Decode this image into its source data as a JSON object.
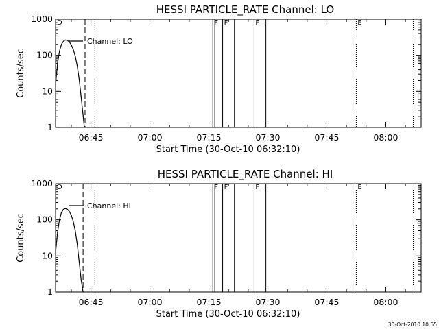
{
  "figure": {
    "timestamp": "30-Oct-2010 10:55",
    "colors": {
      "background": "#ffffff",
      "ink": "#000000"
    }
  },
  "chart_data": [
    {
      "type": "line",
      "title": "HESSI PARTICLE_RATE Channel: LO",
      "xlabel": "Start Time (30-Oct-10 06:32:10)",
      "ylabel": "Counts/sec",
      "yscale": "log",
      "ylim": [
        1,
        1000
      ],
      "xlim": [
        "06:36:00",
        "08:09:00"
      ],
      "xticks": [
        "06:45",
        "07:00",
        "07:15",
        "07:30",
        "07:45",
        "08:00"
      ],
      "yticks": [
        "1",
        "10",
        "100",
        "1000"
      ],
      "legend": {
        "label": "Channel: LO",
        "placement": "top-left"
      },
      "grid": false,
      "series": [
        {
          "name": "Channel: LO",
          "x": [
            "06:36:00",
            "06:36:30",
            "06:37:00",
            "06:37:30",
            "06:38:00",
            "06:38:30",
            "06:39:00",
            "06:39:30",
            "06:40:00",
            "06:40:30",
            "06:41:00",
            "06:41:30",
            "06:42:00",
            "06:42:30",
            "06:43:00",
            "06:43:20"
          ],
          "y": [
            15,
            60,
            130,
            200,
            245,
            265,
            258,
            235,
            195,
            145,
            95,
            52,
            22,
            7,
            2.2,
            1
          ]
        }
      ],
      "markers": [
        {
          "type": "dashed",
          "time": "06:43:30",
          "label": "D"
        },
        {
          "type": "dotted",
          "time": "06:46:00",
          "label": ""
        },
        {
          "type": "solid",
          "time": "07:16:00",
          "label": "F"
        },
        {
          "type": "solid",
          "time": "07:16:30",
          "label": ""
        },
        {
          "type": "solid",
          "time": "07:18:30",
          "label": "F"
        },
        {
          "type": "solid",
          "time": "07:21:30",
          "label": ""
        },
        {
          "type": "solid",
          "time": "07:26:30",
          "label": "F"
        },
        {
          "type": "solid",
          "time": "07:29:30",
          "label": ""
        },
        {
          "type": "dotted",
          "time": "07:52:30",
          "label": "E"
        },
        {
          "type": "dotted",
          "time": "08:07:00",
          "label": ""
        }
      ]
    },
    {
      "type": "line",
      "title": "HESSI PARTICLE_RATE Channel: HI",
      "xlabel": "Start Time (30-Oct-10 06:32:10)",
      "ylabel": "Counts/sec",
      "yscale": "log",
      "ylim": [
        1,
        1000
      ],
      "xlim": [
        "06:36:00",
        "08:09:00"
      ],
      "xticks": [
        "06:45",
        "07:00",
        "07:15",
        "07:30",
        "07:45",
        "08:00"
      ],
      "yticks": [
        "1",
        "10",
        "100",
        "1000"
      ],
      "legend": {
        "label": "Channel: HI",
        "placement": "top-left"
      },
      "grid": false,
      "series": [
        {
          "name": "Channel: HI",
          "x": [
            "06:36:00",
            "06:36:30",
            "06:37:00",
            "06:37:30",
            "06:38:00",
            "06:38:30",
            "06:39:00",
            "06:39:30",
            "06:40:00",
            "06:40:30",
            "06:41:00",
            "06:41:30",
            "06:42:00",
            "06:42:30",
            "06:43:00"
          ],
          "y": [
            12,
            45,
            100,
            160,
            195,
            205,
            195,
            170,
            135,
            90,
            50,
            22,
            7,
            2.2,
            1
          ]
        }
      ],
      "markers": [
        {
          "type": "dashed",
          "time": "06:43:00",
          "label": "D"
        },
        {
          "type": "dotted",
          "time": "06:46:00",
          "label": ""
        },
        {
          "type": "solid",
          "time": "07:16:00",
          "label": "F"
        },
        {
          "type": "solid",
          "time": "07:16:30",
          "label": ""
        },
        {
          "type": "solid",
          "time": "07:18:30",
          "label": "F"
        },
        {
          "type": "solid",
          "time": "07:21:30",
          "label": ""
        },
        {
          "type": "solid",
          "time": "07:26:30",
          "label": "F"
        },
        {
          "type": "solid",
          "time": "07:29:30",
          "label": ""
        },
        {
          "type": "dotted",
          "time": "07:52:30",
          "label": "E"
        },
        {
          "type": "dotted",
          "time": "08:07:00",
          "label": ""
        }
      ]
    }
  ]
}
